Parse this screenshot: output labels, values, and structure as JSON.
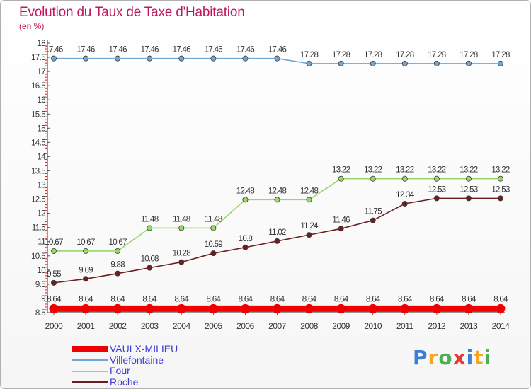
{
  "header": {
    "title": "Evolution du Taux de Taxe d'Habitation",
    "subtitle": "(en %)"
  },
  "logo": {
    "text": "Proxiti",
    "colors": [
      "#3a7fd5",
      "#f5a623",
      "#4caf50",
      "#e53935",
      "#3a7fd5",
      "#f5a623",
      "#4caf50"
    ]
  },
  "chart_data": {
    "type": "line",
    "x": [
      "2000",
      "2001",
      "2002",
      "2003",
      "2004",
      "2005",
      "2006",
      "2007",
      "2008",
      "2009",
      "2010",
      "2011",
      "2012",
      "2013",
      "2014"
    ],
    "ylim": [
      8.5,
      18
    ],
    "yticks": [
      "8.5",
      "9",
      "9.5",
      "10",
      "10.5",
      "11",
      "11.5",
      "12",
      "12.5",
      "13",
      "13.5",
      "14",
      "14.5",
      "15",
      "15.5",
      "16",
      "16.5",
      "17",
      "17.5",
      "18"
    ],
    "grid": false,
    "legend_position": "bottom-left",
    "series": [
      {
        "name": "VAULX-MILIEU",
        "color": "#ee0000",
        "values": [
          8.64,
          8.64,
          8.64,
          8.64,
          8.64,
          8.64,
          8.64,
          8.64,
          8.64,
          8.64,
          8.64,
          8.64,
          8.64,
          8.64,
          8.64
        ],
        "labels": [
          "8.64",
          "8.64",
          "8.64",
          "8.64",
          "8.64",
          "8.64",
          "8.64",
          "8.64",
          "8.64",
          "8.64",
          "8.64",
          "8.64",
          "8.64",
          "8.64",
          "8.64"
        ]
      },
      {
        "name": "Villefontaine",
        "color": "#6fa6d6",
        "values": [
          17.46,
          17.46,
          17.46,
          17.46,
          17.46,
          17.46,
          17.46,
          17.46,
          17.28,
          17.28,
          17.28,
          17.28,
          17.28,
          17.28,
          17.28
        ],
        "labels": [
          "17.46",
          "17.46",
          "17.46",
          "17.46",
          "17.46",
          "17.46",
          "17.46",
          "17.46",
          "17.28",
          "17.28",
          "17.28",
          "17.28",
          "17.28",
          "17.28",
          "17.28"
        ]
      },
      {
        "name": "Four",
        "color": "#97d86a",
        "values": [
          10.67,
          10.67,
          10.67,
          11.48,
          11.48,
          11.48,
          12.48,
          12.48,
          12.48,
          13.22,
          13.22,
          13.22,
          13.22,
          13.22,
          13.22
        ],
        "labels": [
          "10.67",
          "10.67",
          "10.67",
          "11.48",
          "11.48",
          "11.48",
          "12.48",
          "12.48",
          "12.48",
          "13.22",
          "13.22",
          "13.22",
          "13.22",
          "13.22",
          "13.22"
        ]
      },
      {
        "name": "Roche",
        "color": "#6b1f22",
        "values": [
          9.55,
          9.69,
          9.88,
          10.08,
          10.28,
          10.59,
          10.8,
          11.02,
          11.24,
          11.46,
          11.75,
          12.34,
          12.53,
          12.53,
          12.53
        ],
        "labels": [
          "9.55",
          "9.69",
          "9.88",
          "10.08",
          "10.28",
          "10.59",
          "10.8",
          "11.02",
          "11.24",
          "11.46",
          "11.75",
          "12.34",
          "12.53",
          "12.53",
          "12.53"
        ]
      }
    ]
  }
}
